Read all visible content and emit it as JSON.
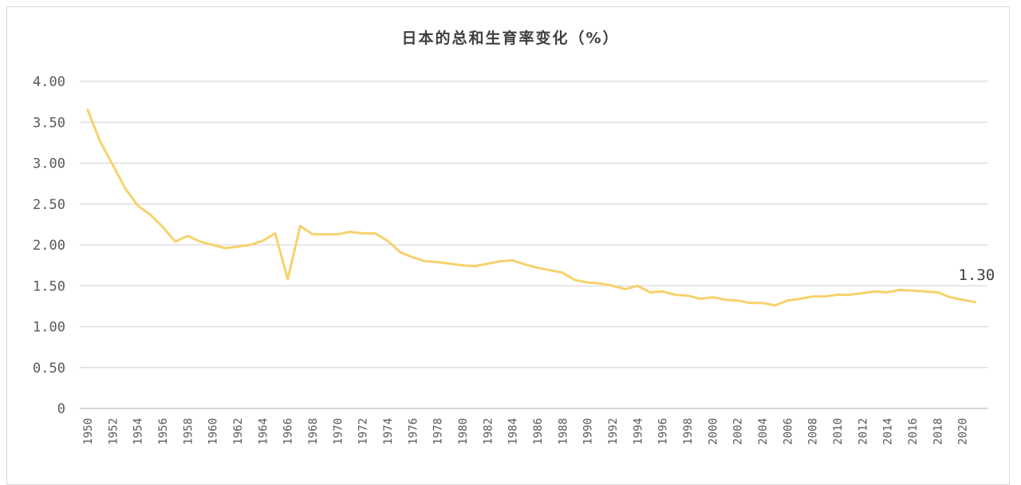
{
  "chart_data": {
    "type": "line",
    "title": "日本的总和生育率变化（%）",
    "xlabel": "",
    "ylabel": "",
    "ylim": [
      0,
      4
    ],
    "yticks": [
      "0",
      "0.50",
      "1.00",
      "1.50",
      "2.00",
      "2.50",
      "3.00",
      "3.50",
      "4.00"
    ],
    "ytick_values": [
      0,
      0.5,
      1.0,
      1.5,
      2.0,
      2.5,
      3.0,
      3.5,
      4.0
    ],
    "xticks": [
      "1950",
      "1952",
      "1954",
      "1956",
      "1958",
      "1960",
      "1962",
      "1964",
      "1966",
      "1968",
      "1970",
      "1972",
      "1974",
      "1976",
      "1978",
      "1980",
      "1982",
      "1984",
      "1986",
      "1988",
      "1990",
      "1992",
      "1994",
      "1996",
      "1998",
      "2000",
      "2002",
      "2004",
      "2006",
      "2008",
      "2010",
      "2012",
      "2014",
      "2016",
      "2018",
      "2020"
    ],
    "grid": true,
    "series": [
      {
        "color": "#f7d26b",
        "x": [
          1950,
          1951,
          1952,
          1953,
          1954,
          1955,
          1956,
          1957,
          1958,
          1959,
          1960,
          1961,
          1962,
          1963,
          1964,
          1965,
          1966,
          1967,
          1968,
          1969,
          1970,
          1971,
          1972,
          1973,
          1974,
          1975,
          1976,
          1977,
          1978,
          1979,
          1980,
          1981,
          1982,
          1983,
          1984,
          1985,
          1986,
          1987,
          1988,
          1989,
          1990,
          1991,
          1992,
          1993,
          1994,
          1995,
          1996,
          1997,
          1998,
          1999,
          2000,
          2001,
          2002,
          2003,
          2004,
          2005,
          2006,
          2007,
          2008,
          2009,
          2010,
          2011,
          2012,
          2013,
          2014,
          2015,
          2016,
          2017,
          2018,
          2019,
          2020,
          2021
        ],
        "values": [
          3.65,
          3.26,
          2.98,
          2.69,
          2.48,
          2.37,
          2.22,
          2.04,
          2.11,
          2.04,
          2.0,
          1.96,
          1.98,
          2.0,
          2.05,
          2.14,
          1.58,
          2.23,
          2.13,
          2.13,
          2.13,
          2.16,
          2.14,
          2.14,
          2.05,
          1.91,
          1.85,
          1.8,
          1.79,
          1.77,
          1.75,
          1.74,
          1.77,
          1.8,
          1.81,
          1.76,
          1.72,
          1.69,
          1.66,
          1.57,
          1.54,
          1.53,
          1.5,
          1.46,
          1.5,
          1.42,
          1.43,
          1.39,
          1.38,
          1.34,
          1.36,
          1.33,
          1.32,
          1.29,
          1.29,
          1.26,
          1.32,
          1.34,
          1.37,
          1.37,
          1.39,
          1.39,
          1.41,
          1.43,
          1.42,
          1.45,
          1.44,
          1.43,
          1.42,
          1.36,
          1.33,
          1.3
        ]
      }
    ],
    "end_label": "1.30"
  }
}
